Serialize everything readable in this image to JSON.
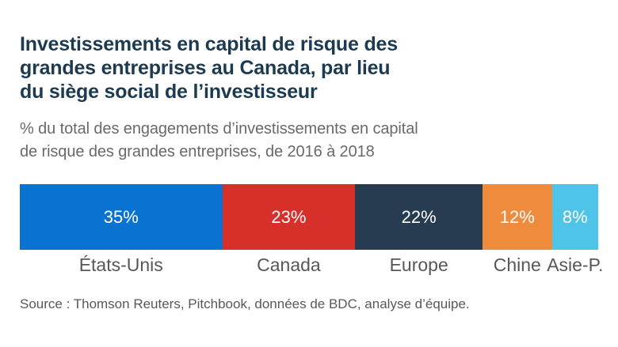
{
  "header": {
    "title_lines": [
      "Investissements en capital de risque des",
      "grandes entreprises au Canada, par lieu",
      "du siège social de l’investisseur"
    ],
    "subtitle_lines": [
      "% du total des engagements d’investissements en capital",
      "de risque des grandes entreprises, de 2016 à 2018"
    ]
  },
  "chart_data": {
    "type": "bar",
    "variant": "horizontal-stacked-single-bar",
    "title": "Investissements en capital de risque des grandes entreprises au Canada, par lieu du siège social de l’investisseur",
    "subtitle": "% du total des engagements d’investissements en capital de risque des grandes entreprises, de 2016 à 2018",
    "categories": [
      "États-Unis",
      "Canada",
      "Europe",
      "Chine",
      "Asie-P."
    ],
    "values": [
      35,
      23,
      22,
      12,
      8
    ],
    "value_labels": [
      "35%",
      "23%",
      "22%",
      "12%",
      "8%"
    ],
    "segment_colors": [
      "#0a73d1",
      "#d7302a",
      "#273c51",
      "#ee8b3c",
      "#4dc4e8"
    ],
    "unit": "%",
    "xlim": [
      0,
      100
    ],
    "legend": "none",
    "grid": "off",
    "value_label_color": "#ffffff",
    "category_label_color": "#56575b"
  },
  "footer": {
    "source": "Source : Thomson Reuters, Pitchbook, données de BDC, analyse d’équipe."
  },
  "colors": {
    "background": "#ffffff",
    "title": "#1c3a50",
    "subtitle": "#69696b",
    "source": "#57585a"
  }
}
